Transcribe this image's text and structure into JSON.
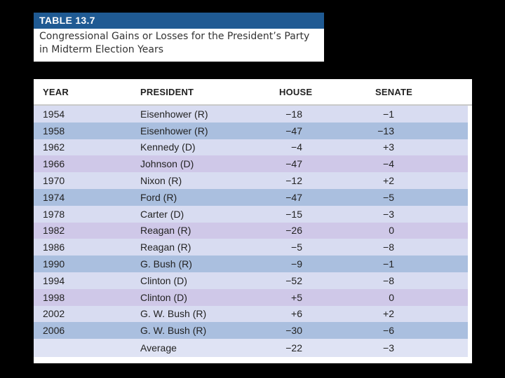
{
  "title_box": {
    "table_number": "TABLE 13.7",
    "caption_line1": "Congressional Gains or Losses for the President’s Party",
    "caption_line2": "in Midterm Election Years"
  },
  "table": {
    "headers": {
      "year": "YEAR",
      "president": "PRESIDENT",
      "house": "HOUSE",
      "senate": "SENATE"
    },
    "rows": [
      {
        "year": "1954",
        "president": "Eisenhower (R)",
        "house": "−18",
        "senate": "−1"
      },
      {
        "year": "1958",
        "president": "Eisenhower (R)",
        "house": "−47",
        "senate": "−13"
      },
      {
        "year": "1962",
        "president": "Kennedy (D)",
        "house": "−4",
        "senate": "+3"
      },
      {
        "year": "1966",
        "president": "Johnson (D)",
        "house": "−47",
        "senate": "−4"
      },
      {
        "year": "1970",
        "president": "Nixon (R)",
        "house": "−12",
        "senate": "+2"
      },
      {
        "year": "1974",
        "president": "Ford (R)",
        "house": "−47",
        "senate": "−5"
      },
      {
        "year": "1978",
        "president": "Carter (D)",
        "house": "−15",
        "senate": "−3"
      },
      {
        "year": "1982",
        "president": "Reagan (R)",
        "house": "−26",
        "senate": "0"
      },
      {
        "year": "1986",
        "president": "Reagan (R)",
        "house": "−5",
        "senate": "−8"
      },
      {
        "year": "1990",
        "president": "G. Bush (R)",
        "house": "−9",
        "senate": "−1"
      },
      {
        "year": "1994",
        "president": "Clinton (D)",
        "house": "−52",
        "senate": "−8"
      },
      {
        "year": "1998",
        "president": "Clinton (D)",
        "house": "+5",
        "senate": "0"
      },
      {
        "year": "2002",
        "president": "G. W. Bush (R)",
        "house": "+6",
        "senate": "+2"
      },
      {
        "year": "2006",
        "president": "G. W. Bush (R)",
        "house": "−30",
        "senate": "−6"
      }
    ],
    "average": {
      "label": "Average",
      "house": "−22",
      "senate": "−3"
    }
  },
  "colors": {
    "title_bar": "#1f5a93",
    "row_light": "#d8dcf1",
    "row_blue": "#aabfdf",
    "row_lavender": "#cfc8e8",
    "background": "#000000"
  }
}
